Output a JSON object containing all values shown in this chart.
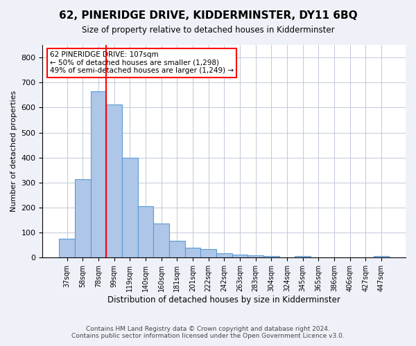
{
  "title": "62, PINERIDGE DRIVE, KIDDERMINSTER, DY11 6BQ",
  "subtitle": "Size of property relative to detached houses in Kidderminster",
  "xlabel": "Distribution of detached houses by size in Kidderminster",
  "ylabel": "Number of detached properties",
  "categories": [
    "37sqm",
    "58sqm",
    "78sqm",
    "99sqm",
    "119sqm",
    "140sqm",
    "160sqm",
    "181sqm",
    "201sqm",
    "222sqm",
    "242sqm",
    "263sqm",
    "283sqm",
    "304sqm",
    "324sqm",
    "345sqm",
    "365sqm",
    "386sqm",
    "406sqm",
    "427sqm",
    "447sqm"
  ],
  "values": [
    75,
    312,
    665,
    612,
    400,
    205,
    135,
    68,
    40,
    33,
    18,
    13,
    10,
    5,
    0,
    7,
    0,
    0,
    0,
    0,
    7
  ],
  "bar_color": "#aec6e8",
  "bar_edge_color": "#5b9bd5",
  "red_line_x": 2.5,
  "annotation_lines": [
    "62 PINERIDGE DRIVE: 107sqm",
    "← 50% of detached houses are smaller (1,298)",
    "49% of semi-detached houses are larger (1,249) →"
  ],
  "footer_line1": "Contains HM Land Registry data © Crown copyright and database right 2024.",
  "footer_line2": "Contains public sector information licensed under the Open Government Licence v3.0.",
  "ylim": [
    0,
    850
  ],
  "yticks": [
    0,
    100,
    200,
    300,
    400,
    500,
    600,
    700,
    800
  ],
  "background_color": "#eef2f8",
  "plot_bg_color": "#ffffff",
  "grid_color": "#c0c8d8"
}
